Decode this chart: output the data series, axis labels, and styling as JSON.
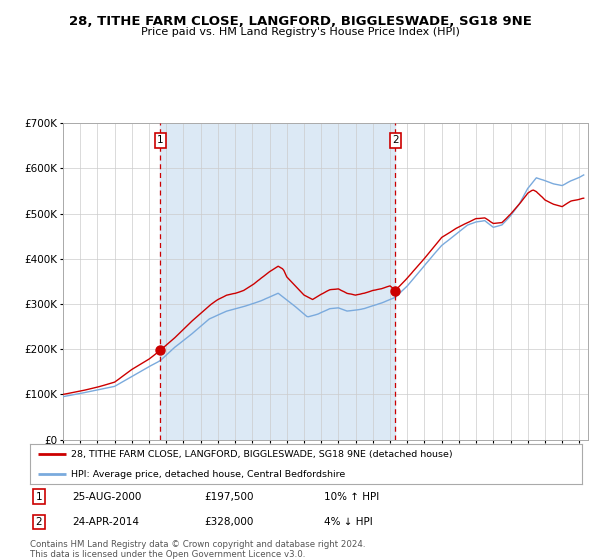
{
  "title_line1": "28, TITHE FARM CLOSE, LANGFORD, BIGGLESWADE, SG18 9NE",
  "title_line2": "Price paid vs. HM Land Registry's House Price Index (HPI)",
  "ylim": [
    0,
    700000
  ],
  "yticks": [
    0,
    100000,
    200000,
    300000,
    400000,
    500000,
    600000,
    700000
  ],
  "ytick_labels": [
    "£0",
    "£100K",
    "£200K",
    "£300K",
    "£400K",
    "£500K",
    "£600K",
    "£700K"
  ],
  "xlim_start": 1995.0,
  "xlim_end": 2025.5,
  "sale1_x": 2000.646,
  "sale1_y": 197500,
  "sale2_x": 2014.311,
  "sale2_y": 328000,
  "legend_red": "28, TITHE FARM CLOSE, LANGFORD, BIGGLESWADE, SG18 9NE (detached house)",
  "legend_blue": "HPI: Average price, detached house, Central Bedfordshire",
  "table_row1": [
    "1",
    "25-AUG-2000",
    "£197,500",
    "10% ↑ HPI"
  ],
  "table_row2": [
    "2",
    "24-APR-2014",
    "£328,000",
    "4% ↓ HPI"
  ],
  "footer": "Contains HM Land Registry data © Crown copyright and database right 2024.\nThis data is licensed under the Open Government Licence v3.0.",
  "shade_color": "#dce9f5",
  "red_line_color": "#cc0000",
  "blue_line_color": "#7aaadd",
  "dot_color": "#cc0000",
  "dashed_line_color": "#cc0000",
  "grid_color": "#cccccc",
  "background_color": "#ffffff"
}
